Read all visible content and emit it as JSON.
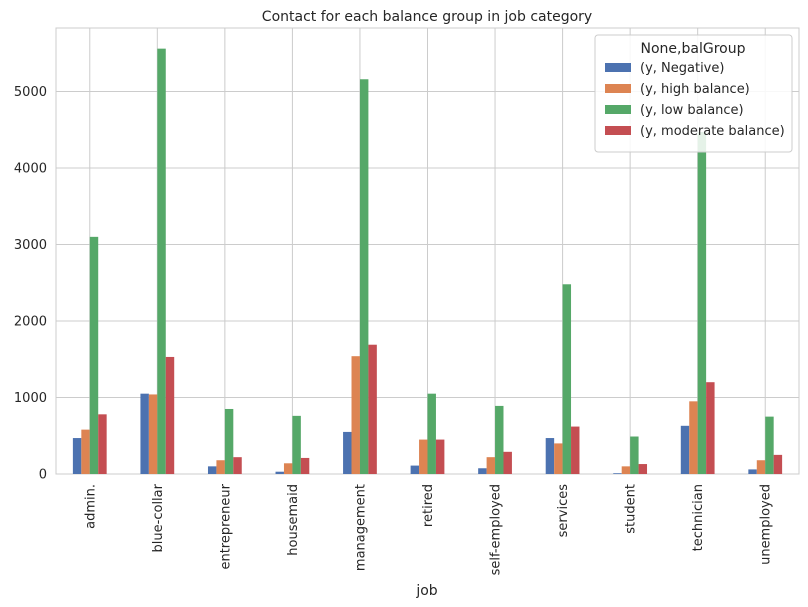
{
  "chart_data": {
    "type": "bar",
    "title": "Contact for each balance group in job category",
    "xlabel": "job",
    "ylabel": "",
    "categories": [
      "admin.",
      "blue-collar",
      "entrepreneur",
      "housemaid",
      "management",
      "retired",
      "self-employed",
      "services",
      "student",
      "technician",
      "unemployed"
    ],
    "series": [
      {
        "name": "(y, Negative)",
        "color": "#4c72b0",
        "values": [
          470,
          1050,
          100,
          30,
          550,
          110,
          75,
          470,
          10,
          630,
          60
        ]
      },
      {
        "name": "(y, high balance)",
        "color": "#dd8452",
        "values": [
          580,
          1040,
          180,
          140,
          1540,
          450,
          220,
          400,
          100,
          950,
          180
        ]
      },
      {
        "name": "(y, low balance)",
        "color": "#55a868",
        "values": [
          3100,
          5560,
          850,
          760,
          5160,
          1050,
          890,
          2480,
          490,
          4470,
          750
        ]
      },
      {
        "name": "(y, moderate balance)",
        "color": "#c44e52",
        "values": [
          780,
          1530,
          220,
          210,
          1690,
          450,
          290,
          620,
          130,
          1200,
          250
        ]
      }
    ],
    "ylim": [
      0,
      5830
    ],
    "yticks": [
      0,
      1000,
      2000,
      3000,
      4000,
      5000
    ],
    "grid": true,
    "legend": {
      "title": "None,balGroup",
      "placement": "top-right"
    }
  }
}
